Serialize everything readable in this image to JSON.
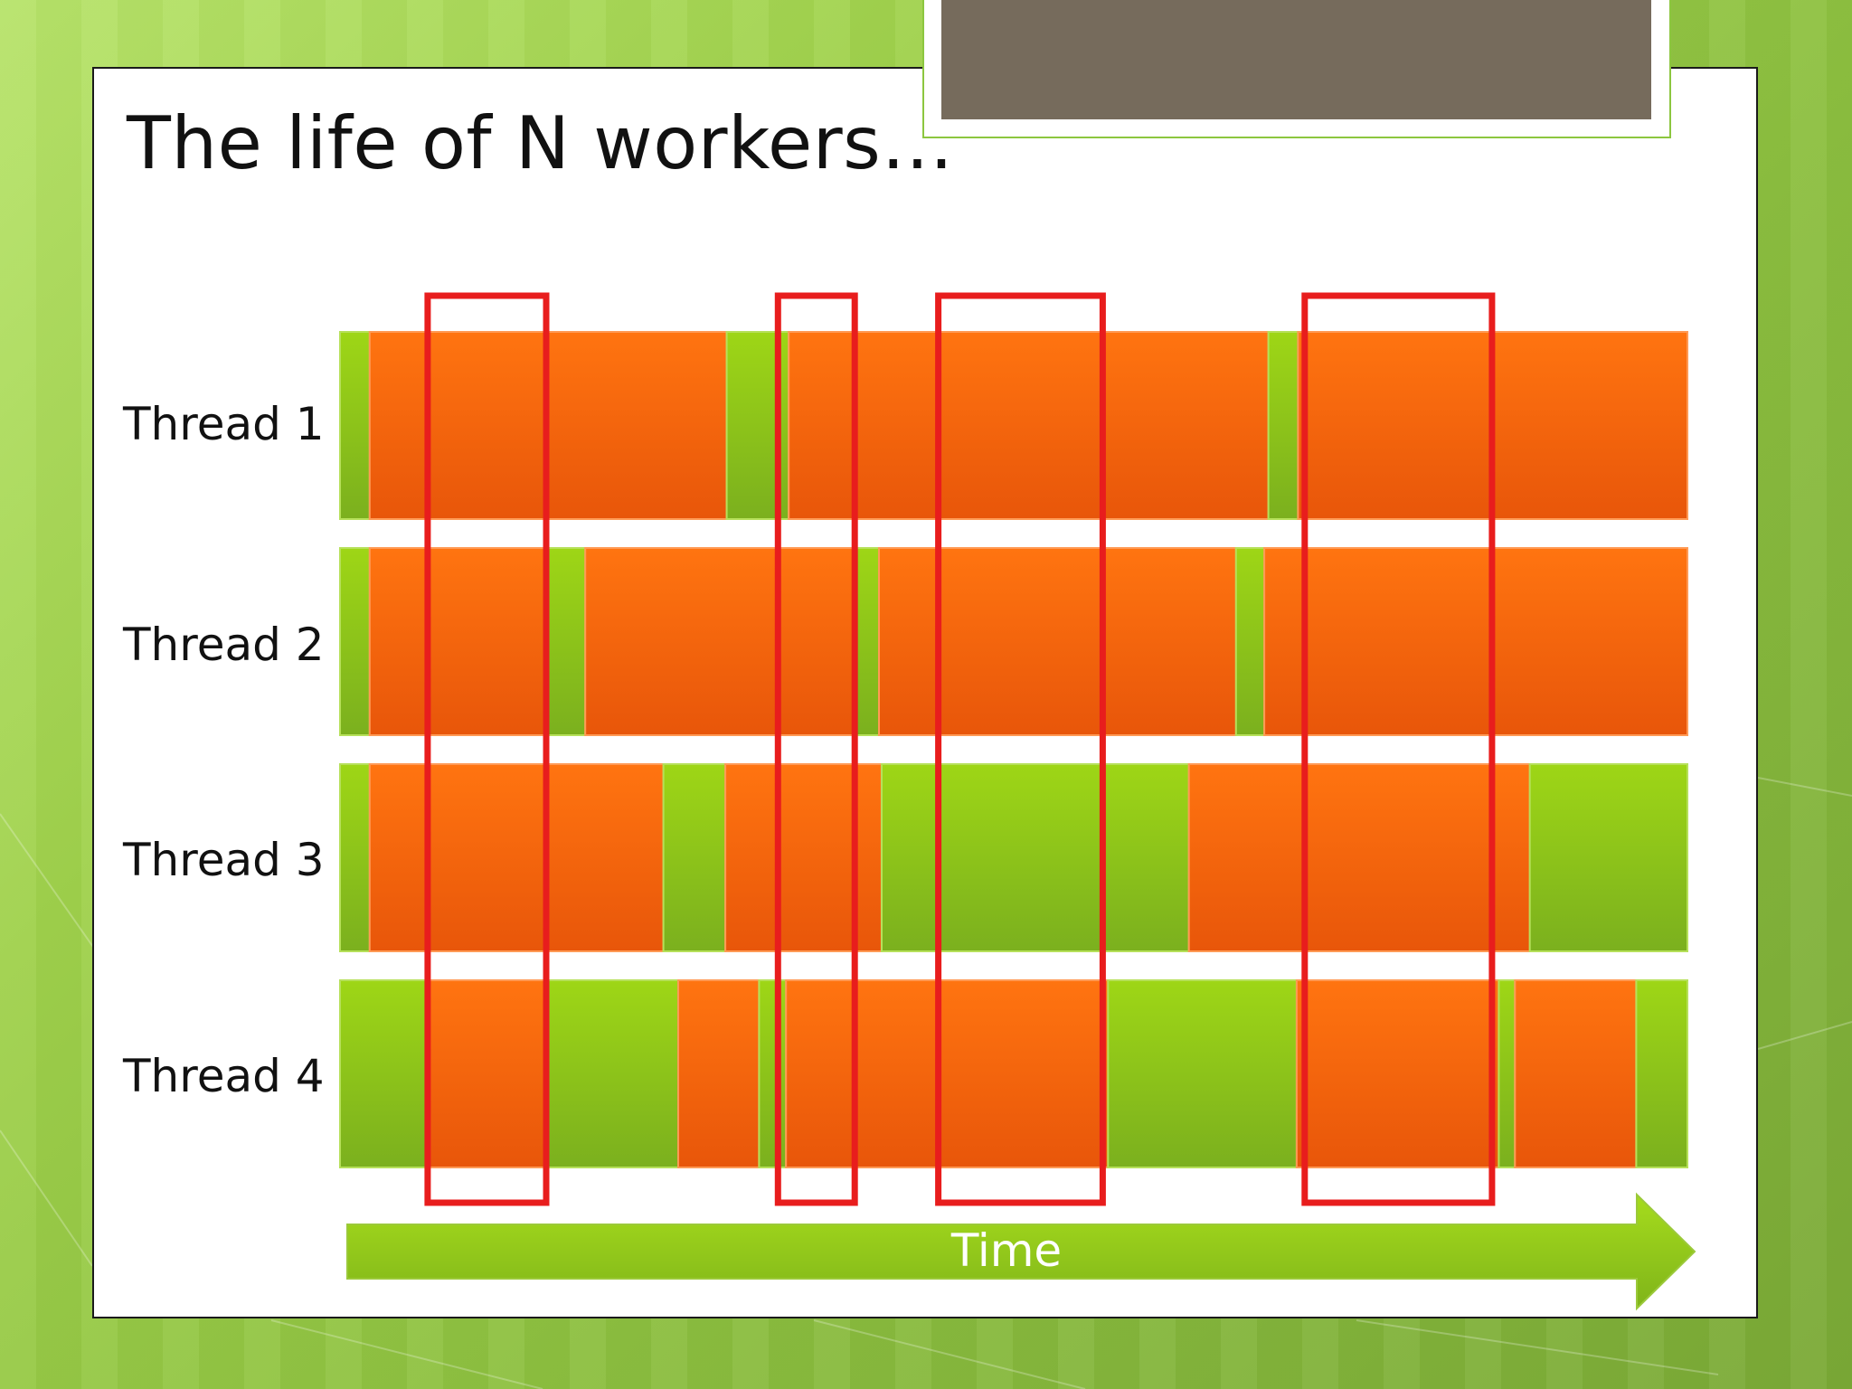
{
  "slide": {
    "title": "The life of N workers…",
    "axis_label": "Time"
  },
  "colors": {
    "work": "#f36a0c",
    "idle": "#8ec81a",
    "highlight": "#e81d1d",
    "background": "#9fd14b"
  },
  "threads": [
    {
      "label": "Thread 1",
      "segments": [
        [
          "idle",
          0,
          0.022
        ],
        [
          "work",
          0.022,
          0.287
        ],
        [
          "idle",
          0.287,
          0.333
        ],
        [
          "work",
          0.333,
          0.689
        ],
        [
          "idle",
          0.689,
          0.711
        ],
        [
          "work",
          0.711,
          1.0
        ]
      ]
    },
    {
      "label": "Thread 2",
      "segments": [
        [
          "idle",
          0,
          0.022
        ],
        [
          "work",
          0.022,
          0.154
        ],
        [
          "idle",
          0.154,
          0.182
        ],
        [
          "work",
          0.182,
          0.383
        ],
        [
          "idle",
          0.383,
          0.4
        ],
        [
          "work",
          0.4,
          0.665
        ],
        [
          "idle",
          0.665,
          0.686
        ],
        [
          "work",
          0.686,
          1.0
        ]
      ]
    },
    {
      "label": "Thread 3",
      "segments": [
        [
          "idle",
          0,
          0.022
        ],
        [
          "work",
          0.022,
          0.24
        ],
        [
          "idle",
          0.24,
          0.286
        ],
        [
          "work",
          0.286,
          0.402
        ],
        [
          "idle",
          0.402,
          0.63
        ],
        [
          "work",
          0.63,
          0.883
        ],
        [
          "idle",
          0.883,
          1.0
        ]
      ]
    },
    {
      "label": "Thread 4",
      "segments": [
        [
          "idle",
          0,
          0.065
        ],
        [
          "work",
          0.065,
          0.153
        ],
        [
          "idle",
          0.153,
          0.251
        ],
        [
          "work",
          0.251,
          0.311
        ],
        [
          "idle",
          0.311,
          0.331
        ],
        [
          "work",
          0.331,
          0.57
        ],
        [
          "idle",
          0.57,
          0.71
        ],
        [
          "work",
          0.71,
          0.86
        ],
        [
          "idle",
          0.86,
          0.872
        ],
        [
          "work",
          0.872,
          0.962
        ],
        [
          "idle",
          0.962,
          1.0
        ]
      ]
    }
  ],
  "highlight_windows": [
    [
      0.065,
      0.153
    ],
    [
      0.325,
      0.382
    ],
    [
      0.444,
      0.566
    ],
    [
      0.716,
      0.855
    ]
  ]
}
